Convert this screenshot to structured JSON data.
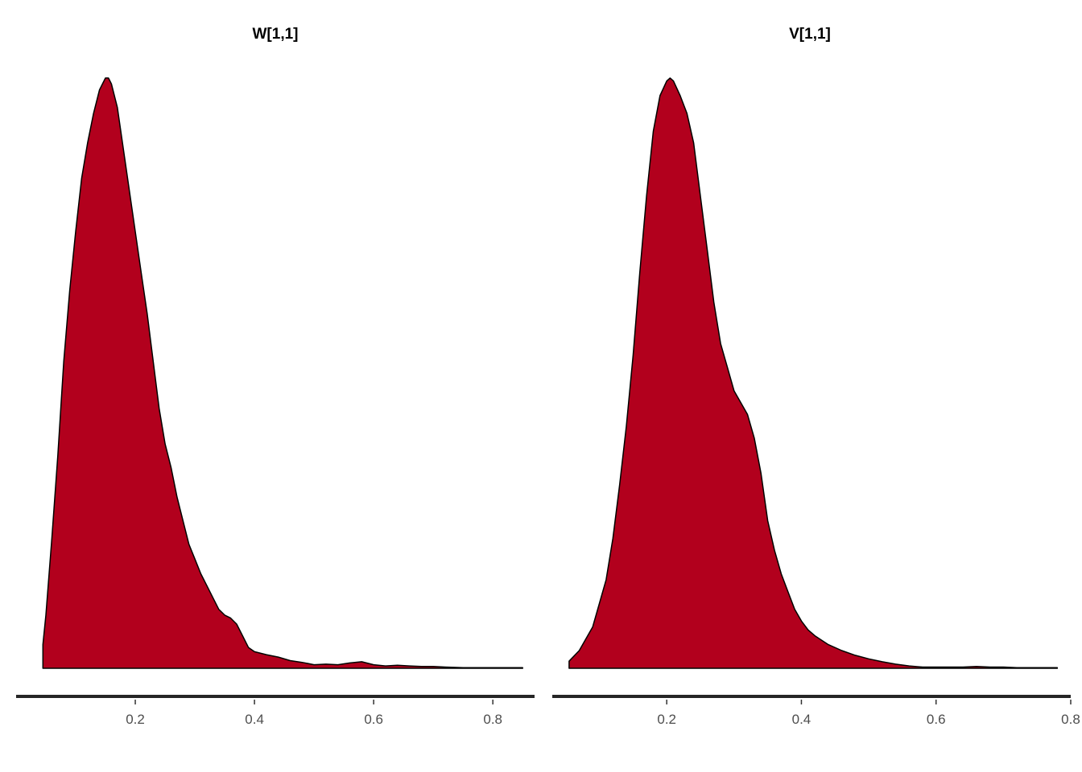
{
  "chart_data": [
    {
      "type": "area",
      "title": "W[1,1]",
      "xlabel": "",
      "ylabel": "",
      "xlim": [
        0.0,
        0.87
      ],
      "xticks": [
        0.2,
        0.4,
        0.6,
        0.8
      ],
      "xtick_labels": [
        "0.2",
        "0.4",
        "0.6",
        "0.8"
      ],
      "grid": false,
      "fill_color": "#b2001d",
      "x": [
        0.045,
        0.05,
        0.06,
        0.07,
        0.08,
        0.09,
        0.1,
        0.11,
        0.12,
        0.13,
        0.14,
        0.15,
        0.155,
        0.16,
        0.17,
        0.18,
        0.19,
        0.2,
        0.21,
        0.22,
        0.23,
        0.24,
        0.25,
        0.26,
        0.27,
        0.28,
        0.29,
        0.3,
        0.31,
        0.32,
        0.33,
        0.34,
        0.35,
        0.36,
        0.37,
        0.38,
        0.39,
        0.4,
        0.42,
        0.44,
        0.46,
        0.48,
        0.5,
        0.52,
        0.54,
        0.56,
        0.58,
        0.6,
        0.62,
        0.64,
        0.66,
        0.68,
        0.7,
        0.72,
        0.75,
        0.8,
        0.85
      ],
      "y": [
        0.04,
        0.09,
        0.22,
        0.36,
        0.52,
        0.64,
        0.74,
        0.83,
        0.89,
        0.94,
        0.98,
        1.0,
        1.0,
        0.99,
        0.95,
        0.88,
        0.81,
        0.74,
        0.67,
        0.6,
        0.52,
        0.44,
        0.38,
        0.34,
        0.29,
        0.25,
        0.21,
        0.185,
        0.16,
        0.14,
        0.12,
        0.1,
        0.09,
        0.085,
        0.075,
        0.055,
        0.035,
        0.028,
        0.023,
        0.019,
        0.013,
        0.01,
        0.006,
        0.007,
        0.006,
        0.009,
        0.011,
        0.006,
        0.004,
        0.005,
        0.004,
        0.003,
        0.003,
        0.002,
        0.001,
        0.001,
        0.001
      ]
    },
    {
      "type": "area",
      "title": "V[1,1]",
      "xlabel": "",
      "ylabel": "",
      "xlim": [
        0.03,
        0.8
      ],
      "xticks": [
        0.2,
        0.4,
        0.6,
        0.8
      ],
      "xtick_labels": [
        "0.2",
        "0.4",
        "0.6",
        "0.8"
      ],
      "grid": false,
      "fill_color": "#b2001d",
      "x": [
        0.055,
        0.07,
        0.09,
        0.11,
        0.12,
        0.13,
        0.14,
        0.15,
        0.16,
        0.17,
        0.18,
        0.19,
        0.2,
        0.205,
        0.21,
        0.22,
        0.23,
        0.24,
        0.25,
        0.26,
        0.27,
        0.28,
        0.29,
        0.3,
        0.31,
        0.32,
        0.33,
        0.34,
        0.35,
        0.36,
        0.37,
        0.38,
        0.39,
        0.4,
        0.41,
        0.42,
        0.44,
        0.46,
        0.48,
        0.5,
        0.52,
        0.54,
        0.56,
        0.58,
        0.6,
        0.62,
        0.64,
        0.66,
        0.68,
        0.7,
        0.72,
        0.74,
        0.78
      ],
      "y": [
        0.012,
        0.03,
        0.07,
        0.15,
        0.22,
        0.31,
        0.41,
        0.53,
        0.67,
        0.8,
        0.91,
        0.97,
        0.995,
        1.0,
        0.995,
        0.97,
        0.94,
        0.89,
        0.8,
        0.71,
        0.62,
        0.55,
        0.51,
        0.47,
        0.45,
        0.43,
        0.39,
        0.33,
        0.25,
        0.2,
        0.16,
        0.13,
        0.1,
        0.08,
        0.065,
        0.055,
        0.04,
        0.03,
        0.022,
        0.016,
        0.011,
        0.007,
        0.004,
        0.002,
        0.002,
        0.002,
        0.002,
        0.003,
        0.002,
        0.002,
        0.001,
        0.001,
        0.001
      ]
    }
  ]
}
